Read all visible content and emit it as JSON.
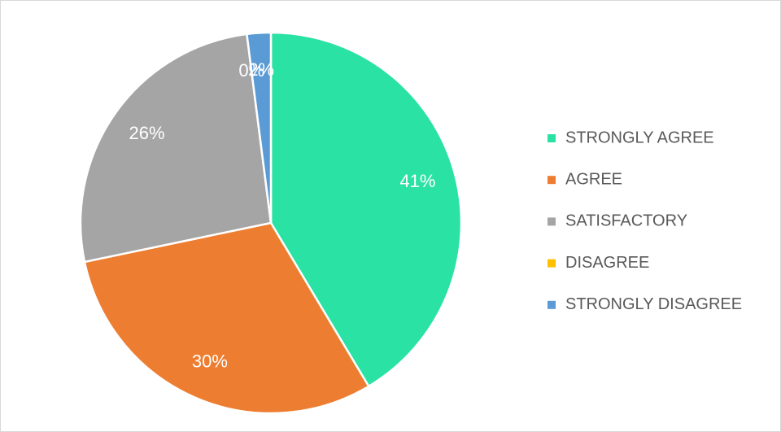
{
  "chart_data": {
    "type": "pie",
    "categories": [
      "STRONGLY AGREE",
      "AGREE",
      "SATISFACTORY",
      "DISAGREE",
      "STRONGLY DISAGREE"
    ],
    "values": [
      41,
      30,
      26,
      0,
      2
    ],
    "value_labels": [
      "41%",
      "30%",
      "26%",
      "0%",
      "2%"
    ],
    "colors": [
      "#2ae2a4",
      "#ed7d31",
      "#a5a5a5",
      "#ffc000",
      "#5b9bd5"
    ],
    "legend": "right"
  }
}
